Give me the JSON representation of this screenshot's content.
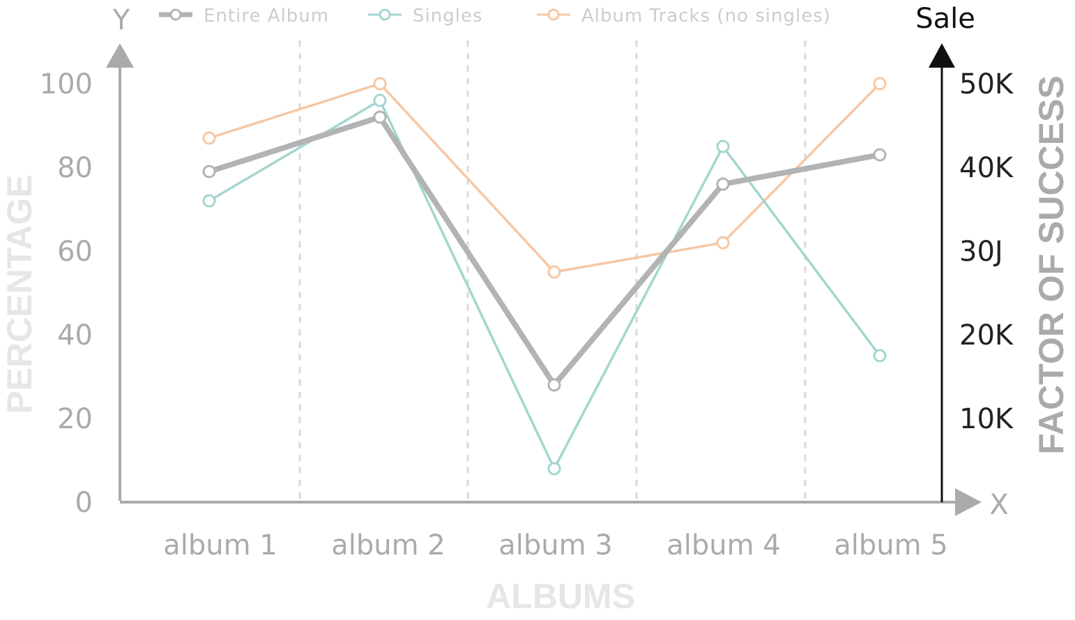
{
  "chart_data": {
    "type": "line",
    "categories": [
      "album 1",
      "album 2",
      "album 3",
      "album 4",
      "album 5"
    ],
    "xlabel": "ALBUMS",
    "ylabel": "PERCENTAGE",
    "y2label": "FACTOR OF SUCCESS",
    "y_axis_letter": "Y",
    "x_axis_letter": "X",
    "y2_axis_letter": "Sale",
    "ylim": [
      0,
      100
    ],
    "yticks": [
      "0",
      "20",
      "40",
      "60",
      "80",
      "100"
    ],
    "y2ticks": [
      "10K",
      "20K",
      "30J",
      "40K",
      "50K"
    ],
    "y2ticks_values": [
      20,
      40,
      60,
      80,
      100
    ],
    "legend_position": "top",
    "grid": "vertical dashed separators",
    "series": [
      {
        "name": "Entire Album",
        "color": "#b3b3b3",
        "values": [
          79,
          92,
          28,
          76,
          83
        ]
      },
      {
        "name": "Singles",
        "color": "#a3d6d0",
        "values": [
          72,
          96,
          8,
          85,
          35
        ]
      },
      {
        "name": "Album Tracks (no singles)",
        "color": "#f6c7a4",
        "values": [
          87,
          100,
          55,
          62,
          100
        ]
      }
    ]
  }
}
